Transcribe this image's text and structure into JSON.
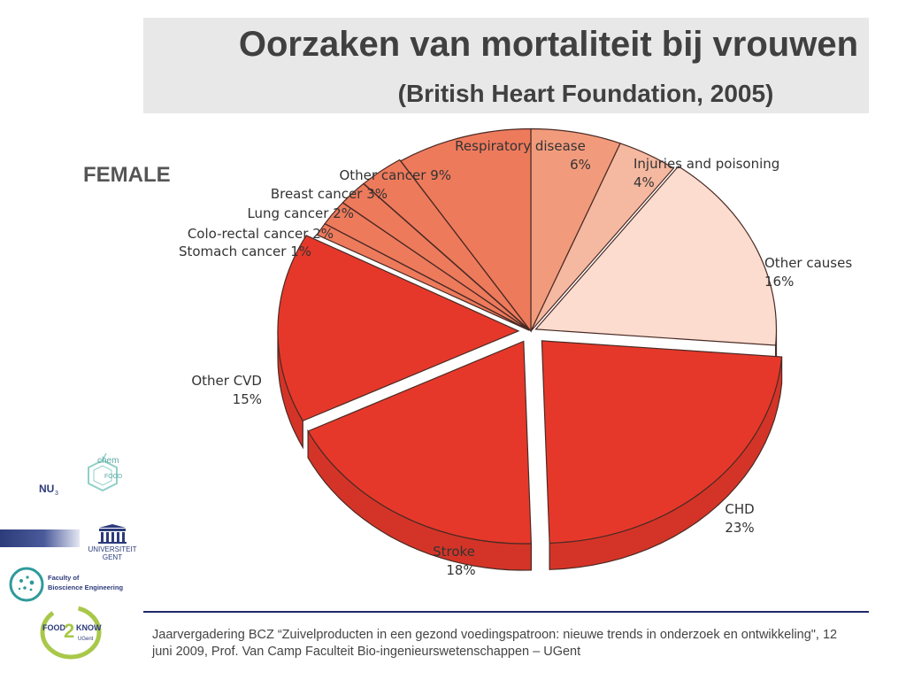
{
  "header": {
    "title": "Oorzaken van mortaliteit bij vrouwen",
    "subtitle": "(British Heart Foundation, 2005)"
  },
  "panel_label": "FEMALE",
  "chart_data": {
    "type": "pie",
    "slices": [
      {
        "label": "Respiratory disease",
        "value": 6,
        "value_label": "6%",
        "color": "#f29b7c"
      },
      {
        "label": "Injuries and poisoning",
        "value": 4,
        "value_label": "4%",
        "color": "#f5b8a0"
      },
      {
        "label": "Other causes",
        "value": 16,
        "value_label": "16%",
        "color": "#fbdccf"
      },
      {
        "label": "CHD",
        "value": 23,
        "value_label": "23%",
        "color": "#e6382a"
      },
      {
        "label": "Stroke",
        "value": 18,
        "value_label": "18%",
        "color": "#e6382a"
      },
      {
        "label": "Other CVD",
        "value": 15,
        "value_label": "15%",
        "color": "#e6382a"
      },
      {
        "label": "Stomach cancer",
        "value": 1,
        "value_label": "1%",
        "color": "#ee7a5c"
      },
      {
        "label": "Colo-rectal cancer",
        "value": 2,
        "value_label": "2%",
        "color": "#ee7a5c"
      },
      {
        "label": "Lung cancer",
        "value": 2,
        "value_label": "2%",
        "color": "#ee7a5c"
      },
      {
        "label": "Breast cancer",
        "value": 3,
        "value_label": "3%",
        "color": "#ee7a5c"
      },
      {
        "label": "Other cancer",
        "value": 9,
        "value_label": "9%",
        "color": "#ee7a5c"
      }
    ]
  },
  "logos": {
    "nu_food": {
      "nu": "NU",
      "sub": "3",
      "food": "FOOD",
      "chem": "chem"
    },
    "ugent": {
      "line1": "UNIVERSITEIT",
      "line2": "GENT"
    },
    "faculty": {
      "line1": "Faculty of",
      "line2": "Bioscience Engineering"
    },
    "food2know": {
      "food": "FOOD",
      "two": "2",
      "know": "KNOW",
      "sub": "UGent"
    }
  },
  "footer": {
    "text": "Jaarvergadering BCZ “Zuivelproducten in een gezond voedingspatroon: nieuwe trends in onderzoek en ontwikkeling\", 12 juni 2009, Prof. Van Camp  Faculteit Bio-ingenieurswetenschappen – UGent"
  }
}
